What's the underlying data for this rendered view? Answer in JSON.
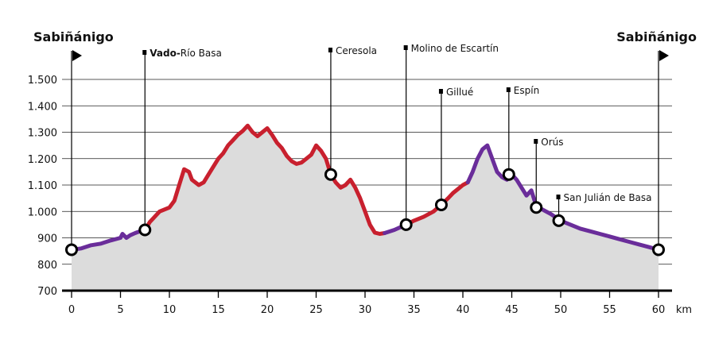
{
  "chart_data": {
    "type": "area",
    "xlabel": "km",
    "ylabel": "",
    "xlim": [
      0,
      60
    ],
    "ylim": [
      700,
      1600
    ],
    "x_ticks": [
      0,
      5,
      10,
      15,
      20,
      25,
      30,
      35,
      40,
      45,
      50,
      55,
      60
    ],
    "x_tick_labels": [
      "0",
      "5",
      "10",
      "15",
      "20",
      "25",
      "30",
      "35",
      "40",
      "45",
      "50",
      "55",
      "60"
    ],
    "y_ticks": [
      700,
      800,
      900,
      1000,
      1100,
      1200,
      1300,
      1400,
      1500
    ],
    "y_tick_labels": [
      "700",
      "800",
      "900",
      "1.000",
      "1.100",
      "1.200",
      "1.300",
      "1.400",
      "1.500"
    ],
    "grid": true,
    "colors": {
      "ascent": "#c8202e",
      "descent": "#6a2d9a",
      "fill": "#dcdcdc",
      "grid": "#222222"
    },
    "series": [
      {
        "segment": "flat",
        "x": [
          0,
          1,
          2,
          3,
          4,
          5,
          5.2,
          5.6,
          6,
          6.5,
          7,
          7.5
        ],
        "y": [
          855,
          860,
          872,
          878,
          890,
          900,
          915,
          900,
          910,
          918,
          925,
          930
        ]
      },
      {
        "segment": "ascent",
        "x": [
          7.5,
          8,
          9,
          10,
          10.5,
          11,
          11.5,
          12,
          12.3,
          13,
          13.5,
          14,
          15,
          15.5,
          16,
          16.5,
          17,
          17.5,
          18,
          18.5,
          19,
          19.5,
          20,
          20.5,
          21,
          21.5,
          22,
          22.5,
          23,
          23.5,
          24,
          24.5,
          25,
          25.5,
          26,
          26.5,
          27,
          27.5,
          28,
          28.5,
          29,
          29.5,
          30,
          30.5,
          31,
          31.5,
          32
        ],
        "y": [
          930,
          960,
          1000,
          1015,
          1040,
          1100,
          1160,
          1150,
          1120,
          1100,
          1110,
          1140,
          1200,
          1220,
          1250,
          1270,
          1290,
          1305,
          1325,
          1300,
          1285,
          1300,
          1315,
          1290,
          1260,
          1240,
          1210,
          1190,
          1180,
          1185,
          1200,
          1215,
          1250,
          1230,
          1200,
          1140,
          1110,
          1090,
          1100,
          1120,
          1090,
          1050,
          1000,
          950,
          920,
          915,
          918
        ]
      },
      {
        "segment": "descent",
        "x": [
          32,
          33,
          34.2
        ],
        "y": [
          918,
          930,
          950
        ]
      },
      {
        "segment": "ascent",
        "x": [
          34.2,
          35,
          36,
          37,
          37.8,
          38.5,
          39,
          39.5,
          40,
          40.5
        ],
        "y": [
          950,
          965,
          980,
          1000,
          1025,
          1050,
          1070,
          1085,
          1100,
          1110
        ]
      },
      {
        "segment": "descent",
        "x": [
          40.5,
          41,
          41.5,
          42,
          42.5,
          43,
          43.5,
          44,
          44.5,
          45,
          45.5,
          46,
          46.5,
          47,
          47.5,
          48,
          49,
          50,
          51,
          52,
          53,
          54,
          55,
          56,
          57,
          58,
          59,
          60
        ],
        "y": [
          1110,
          1150,
          1200,
          1235,
          1250,
          1200,
          1150,
          1130,
          1120,
          1140,
          1120,
          1090,
          1060,
          1080,
          1020,
          1010,
          990,
          965,
          950,
          935,
          925,
          915,
          905,
          895,
          885,
          875,
          865,
          855
        ]
      }
    ],
    "waypoints": [
      {
        "name": "Sabiñánigo",
        "km": 0,
        "ele": 855,
        "role": "start"
      },
      {
        "name": "Vado-Río Basa",
        "name_bold": "Vado-",
        "name_rest": "Río Basa",
        "km": 7.5,
        "ele": 930
      },
      {
        "name": "Ceresola",
        "km": 26.5,
        "ele": 1140
      },
      {
        "name": "Molino de Escartín",
        "km": 34.2,
        "ele": 950
      },
      {
        "name": "Gillué",
        "km": 37.8,
        "ele": 1025
      },
      {
        "name": "Espín",
        "km": 44.7,
        "ele": 1140
      },
      {
        "name": "Orús",
        "km": 47.5,
        "ele": 1015
      },
      {
        "name": "San Julián de Basa",
        "km": 49.8,
        "ele": 965
      },
      {
        "name": "Sabiñánigo",
        "km": 60,
        "ele": 855,
        "role": "end"
      }
    ]
  }
}
